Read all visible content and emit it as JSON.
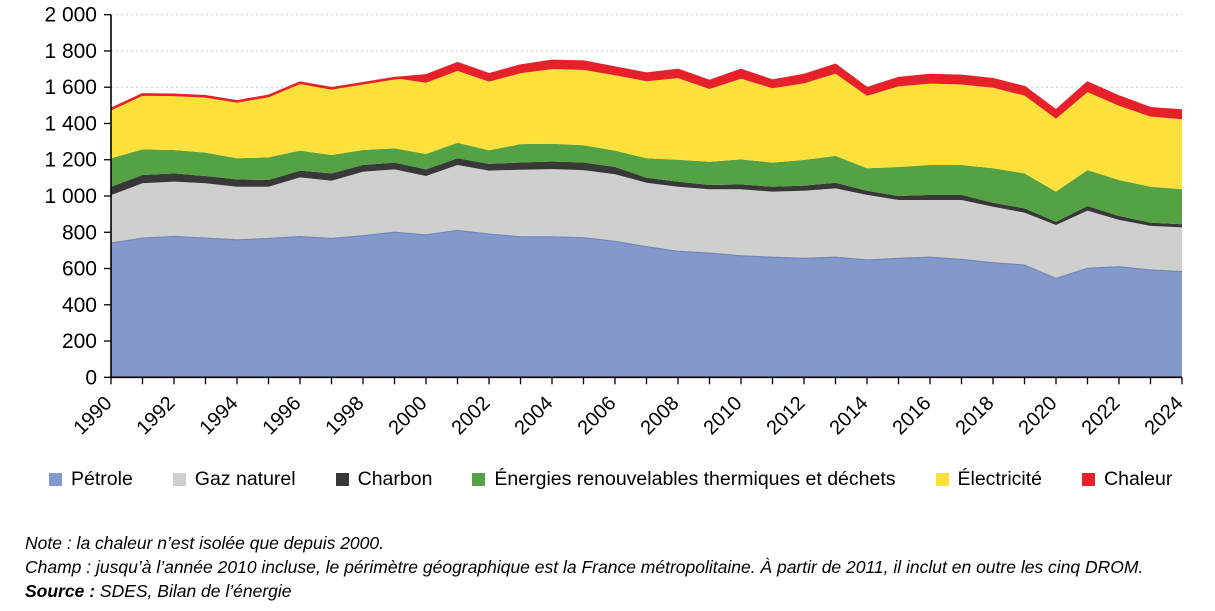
{
  "chart_data": {
    "type": "area",
    "subtype": "stacked",
    "title": "",
    "xlabel": "",
    "ylabel": "",
    "ylim": [
      0,
      2000
    ],
    "y_step": 200,
    "y_tick_labels": [
      "0",
      "200",
      "400",
      "600",
      "800",
      "1 000",
      "1 200",
      "1 400",
      "1 600",
      "1 800",
      "2 000"
    ],
    "grid": "horizontal-dashed",
    "legend_position": "bottom",
    "years": [
      1990,
      1991,
      1992,
      1993,
      1994,
      1995,
      1996,
      1997,
      1998,
      1999,
      2000,
      2001,
      2002,
      2003,
      2004,
      2005,
      2006,
      2007,
      2008,
      2009,
      2010,
      2011,
      2012,
      2013,
      2014,
      2015,
      2016,
      2017,
      2018,
      2019,
      2020,
      2021,
      2022,
      2023,
      2024
    ],
    "x_labeled_every": 2,
    "series": [
      {
        "key": "petrole",
        "name": "Pétrole",
        "color": "#8499CB",
        "edge_color": "#7186BD",
        "values": [
          740,
          768,
          777,
          768,
          758,
          766,
          776,
          766,
          781,
          800,
          785,
          810,
          790,
          775,
          775,
          770,
          750,
          720,
          695,
          685,
          670,
          662,
          656,
          662,
          647,
          656,
          662,
          650,
          632,
          619,
          545,
          601,
          610,
          592,
          583
        ]
      },
      {
        "key": "gaz-naturel",
        "name": "Gaz naturel",
        "color": "#CFCFCD",
        "values": [
          265,
          302,
          302,
          302,
          293,
          285,
          327,
          318,
          353,
          347,
          325,
          361,
          350,
          370,
          373,
          373,
          370,
          353,
          356,
          352,
          367,
          362,
          373,
          380,
          359,
          322,
          316,
          328,
          309,
          289,
          295,
          318,
          258,
          243,
          244
        ]
      },
      {
        "key": "charbon",
        "name": "Charbon",
        "color": "#383838",
        "values": [
          46,
          46,
          46,
          40,
          41,
          37,
          37,
          41,
          37,
          37,
          37,
          37,
          37,
          40,
          42,
          42,
          40,
          28,
          28,
          24,
          27,
          27,
          28,
          31,
          23,
          22,
          28,
          28,
          22,
          24,
          18,
          26,
          22,
          18,
          17
        ]
      },
      {
        "key": "enr-thermiques-dechets",
        "name": "Énergies renouvelables thermiques et déchets",
        "color": "#55A245",
        "values": [
          157,
          141,
          129,
          129,
          116,
          125,
          110,
          101,
          83,
          79,
          85,
          86,
          75,
          101,
          98,
          95,
          90,
          107,
          121,
          128,
          138,
          133,
          142,
          148,
          124,
          160,
          165,
          165,
          190,
          193,
          166,
          198,
          198,
          198,
          193
        ]
      },
      {
        "key": "electricite",
        "name": "Électricité",
        "color": "#FCE13D",
        "values": [
          272,
          303,
          304,
          311,
          314,
          339,
          375,
          368,
          368,
          387,
          393,
          396,
          379,
          391,
          412,
          416,
          416,
          425,
          450,
          401,
          445,
          410,
          422,
          454,
          399,
          445,
          449,
          444,
          444,
          429,
          402,
          430,
          410,
          387,
          386
        ]
      },
      {
        "key": "chaleur",
        "name": "Chaleur",
        "color": "#E6212A",
        "values": [
          0,
          0,
          0,
          0,
          0,
          0,
          0,
          0,
          0,
          0,
          40,
          42,
          40,
          42,
          45,
          45,
          42,
          42,
          45,
          44,
          48,
          42,
          46,
          48,
          42,
          45,
          47,
          47,
          47,
          46,
          45,
          52,
          50,
          46,
          48
        ]
      }
    ],
    "axis_color": "#000000",
    "gridline_color": "#C9C9C9"
  },
  "notes": {
    "note": "Note : la chaleur n’est isolée que depuis 2000.",
    "champ": "Champ : jusqu’à l’année 2010 incluse, le périmètre géographique est la France métropolitaine. À partir de 2011, il inclut en outre les cinq DROM.",
    "source_label": "Source :",
    "source_text": " SDES, Bilan de l’énergie"
  }
}
